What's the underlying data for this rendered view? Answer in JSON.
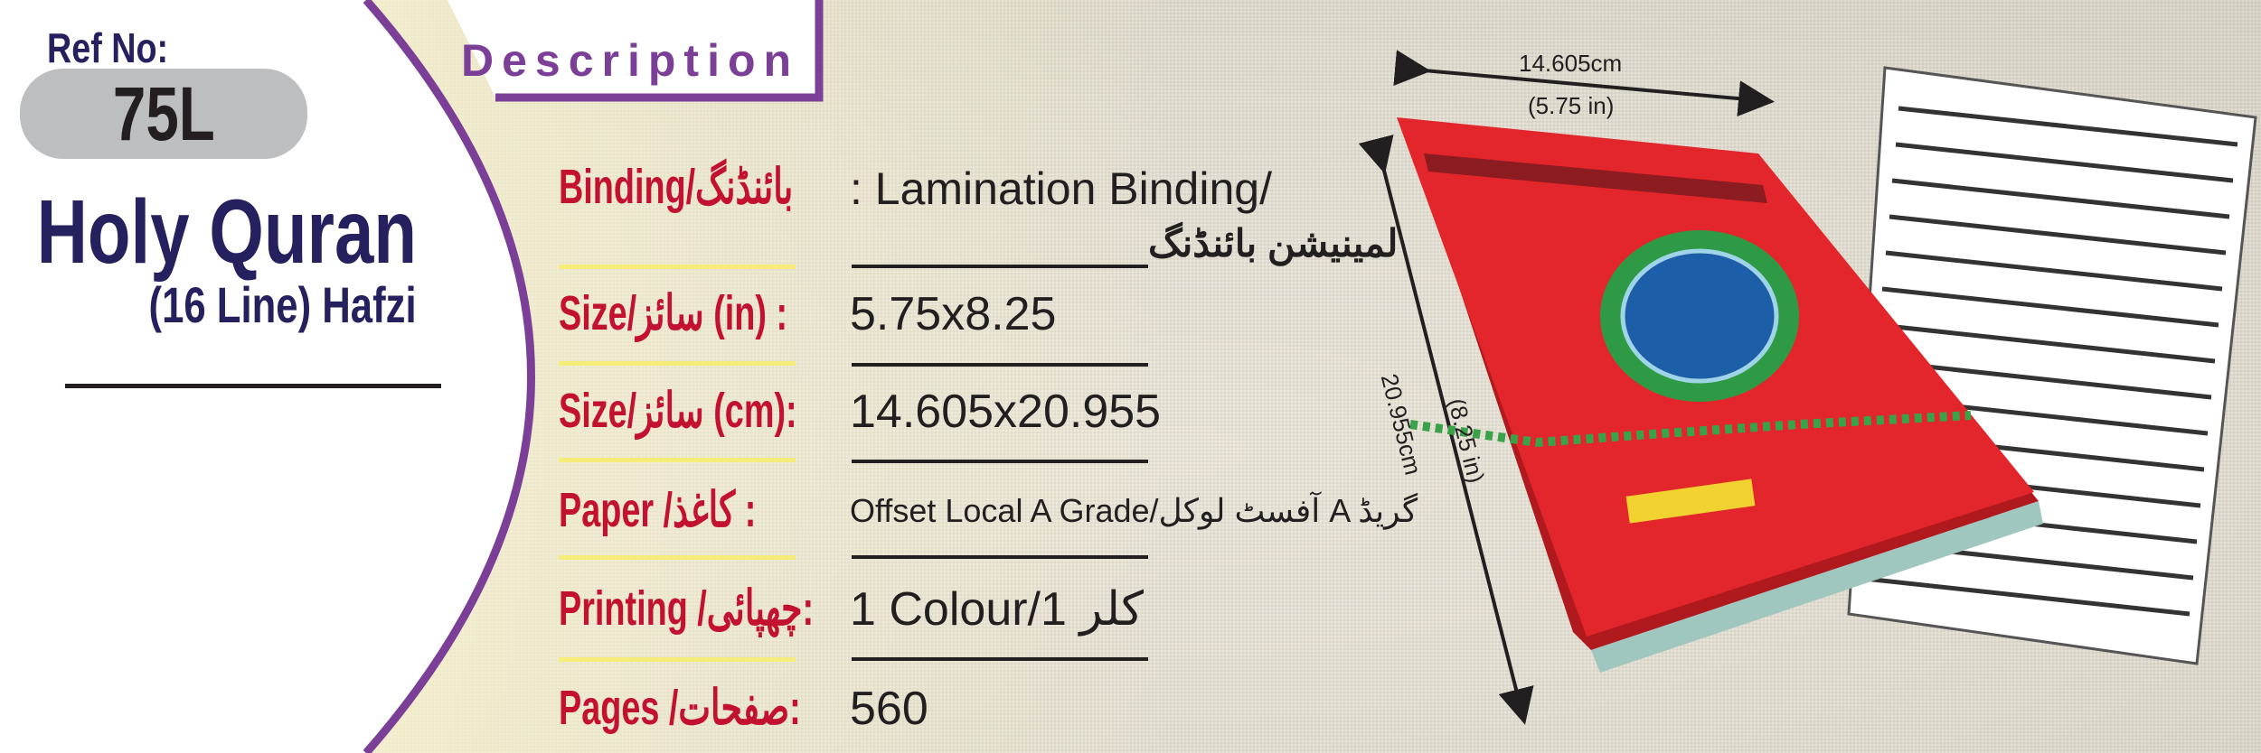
{
  "ref": {
    "label": "Ref No:",
    "value": "75L"
  },
  "product": {
    "title": "Holy Quran",
    "subtitle": "(16 Line) Hafzi"
  },
  "description_heading": "Description",
  "specs": [
    {
      "label": "Binding/بائنڈنگ",
      "value": ": Lamination Binding/",
      "value2": "لمینیشن بائنڈنگ"
    },
    {
      "label": "Size/سائز (in) :",
      "value": "5.75x8.25"
    },
    {
      "label": "Size/سائز (cm):",
      "value": "14.605x20.955"
    },
    {
      "label": "Paper /کاغذ  :",
      "value": "Offset Local A Grade/آفسٹ لوکل A گریڈ"
    },
    {
      "label": "Printing /چھپائی:",
      "value": "1 Colour/1 کلر"
    },
    {
      "label": "Pages /صفحات:",
      "value": "560"
    }
  ],
  "dimensions": {
    "width_cm": "14.605cm",
    "width_in": "(5.75 in)",
    "height_cm": "20.955cm",
    "height_in": "(8.25 in)"
  },
  "colors": {
    "navy": "#25215f",
    "purple": "#7b3f98",
    "red": "#c3122f",
    "book_red": "#e3262b",
    "pill": "#bdbec0"
  }
}
